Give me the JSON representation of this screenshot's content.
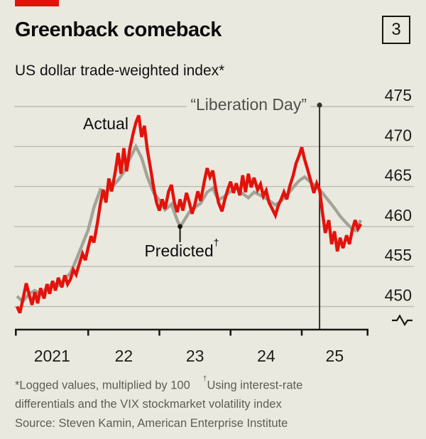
{
  "header": {
    "title": "Greenback comeback",
    "subtitle": "US dollar trade-weighted index*",
    "figure_number": "3",
    "accent_color": "#e3120b"
  },
  "chart_data": {
    "type": "line",
    "title": "US dollar trade-weighted index*",
    "xlabel": "",
    "ylabel": "",
    "ylim": [
      448,
      476
    ],
    "yticks": [
      "475",
      "470",
      "465",
      "460",
      "455",
      "450"
    ],
    "ytick_values": [
      475,
      470,
      465,
      460,
      455,
      450
    ],
    "xticks": [
      "2021",
      "22",
      "23",
      "24",
      "25"
    ],
    "xtick_years": [
      2021,
      2022,
      2023,
      2024,
      2025
    ],
    "grid": "horizontal",
    "axis_break": true,
    "legend_position": "inline-annotations",
    "colors": {
      "actual": "#e3120b",
      "predicted": "#a3a398",
      "gridline": "#bcbbb1",
      "axis": "#1a1a14",
      "marker_line": "#33332c",
      "tick_label": "#1d1d18"
    },
    "annotations": {
      "actual_label": "Actual",
      "predicted_label": "Predicted",
      "predicted_sup": "†",
      "predicted_point": [
        2023.29,
        460.0
      ],
      "liberation_label": "“Liberation Day”",
      "liberation_x": 2025.25
    },
    "series": [
      {
        "name": "Predicted",
        "color": "#a3a398",
        "points": [
          [
            2021.0,
            451.3
          ],
          [
            2021.08,
            450.6
          ],
          [
            2021.17,
            451.6
          ],
          [
            2021.25,
            452.0
          ],
          [
            2021.33,
            451.5
          ],
          [
            2021.42,
            452.4
          ],
          [
            2021.5,
            452.9
          ],
          [
            2021.58,
            452.6
          ],
          [
            2021.67,
            453.4
          ],
          [
            2021.75,
            454.2
          ],
          [
            2021.83,
            455.8
          ],
          [
            2021.92,
            457.8
          ],
          [
            2022.0,
            459.6
          ],
          [
            2022.08,
            462.4
          ],
          [
            2022.17,
            464.6
          ],
          [
            2022.25,
            464.3
          ],
          [
            2022.33,
            464.9
          ],
          [
            2022.42,
            465.8
          ],
          [
            2022.5,
            466.8
          ],
          [
            2022.58,
            468.4
          ],
          [
            2022.67,
            470.0
          ],
          [
            2022.75,
            468.6
          ],
          [
            2022.83,
            466.2
          ],
          [
            2022.92,
            464.2
          ],
          [
            2023.0,
            463.3
          ],
          [
            2023.08,
            462.1
          ],
          [
            2023.17,
            462.8
          ],
          [
            2023.25,
            460.8
          ],
          [
            2023.29,
            460.0
          ],
          [
            2023.33,
            460.5
          ],
          [
            2023.42,
            461.8
          ],
          [
            2023.5,
            462.4
          ],
          [
            2023.58,
            462.9
          ],
          [
            2023.67,
            464.3
          ],
          [
            2023.75,
            464.8
          ],
          [
            2023.83,
            463.3
          ],
          [
            2023.92,
            463.8
          ],
          [
            2024.0,
            464.4
          ],
          [
            2024.08,
            464.8
          ],
          [
            2024.17,
            464.1
          ],
          [
            2024.25,
            463.6
          ],
          [
            2024.33,
            464.3
          ],
          [
            2024.42,
            463.9
          ],
          [
            2024.5,
            463.5
          ],
          [
            2024.58,
            463.0
          ],
          [
            2024.63,
            462.7
          ],
          [
            2024.71,
            463.2
          ],
          [
            2024.79,
            463.9
          ],
          [
            2024.88,
            464.9
          ],
          [
            2024.96,
            465.7
          ],
          [
            2025.04,
            466.2
          ],
          [
            2025.13,
            465.5
          ],
          [
            2025.21,
            464.9
          ],
          [
            2025.29,
            464.2
          ],
          [
            2025.38,
            463.2
          ],
          [
            2025.46,
            462.3
          ],
          [
            2025.54,
            461.3
          ],
          [
            2025.63,
            460.4
          ],
          [
            2025.71,
            459.7
          ],
          [
            2025.75,
            459.5
          ],
          [
            2025.79,
            460.1
          ],
          [
            2025.83,
            460.8
          ]
        ]
      },
      {
        "name": "Actual",
        "color": "#e3120b",
        "points": [
          [
            2021.0,
            450.0
          ],
          [
            2021.04,
            449.2
          ],
          [
            2021.08,
            450.8
          ],
          [
            2021.13,
            452.9
          ],
          [
            2021.17,
            451.5
          ],
          [
            2021.21,
            450.2
          ],
          [
            2021.25,
            451.8
          ],
          [
            2021.29,
            450.4
          ],
          [
            2021.33,
            452.3
          ],
          [
            2021.38,
            451.0
          ],
          [
            2021.42,
            452.8
          ],
          [
            2021.46,
            451.6
          ],
          [
            2021.5,
            453.2
          ],
          [
            2021.54,
            452.0
          ],
          [
            2021.58,
            453.6
          ],
          [
            2021.63,
            452.4
          ],
          [
            2021.67,
            453.9
          ],
          [
            2021.71,
            452.8
          ],
          [
            2021.75,
            453.4
          ],
          [
            2021.79,
            454.6
          ],
          [
            2021.83,
            454.0
          ],
          [
            2021.88,
            455.5
          ],
          [
            2021.92,
            456.6
          ],
          [
            2021.96,
            455.8
          ],
          [
            2022.0,
            457.4
          ],
          [
            2022.04,
            458.8
          ],
          [
            2022.08,
            458.0
          ],
          [
            2022.13,
            460.5
          ],
          [
            2022.17,
            462.8
          ],
          [
            2022.21,
            464.6
          ],
          [
            2022.25,
            463.0
          ],
          [
            2022.29,
            466.0
          ],
          [
            2022.33,
            464.4
          ],
          [
            2022.38,
            466.8
          ],
          [
            2022.42,
            469.2
          ],
          [
            2022.46,
            466.6
          ],
          [
            2022.5,
            469.8
          ],
          [
            2022.54,
            466.9
          ],
          [
            2022.58,
            469.5
          ],
          [
            2022.63,
            471.6
          ],
          [
            2022.67,
            473.0
          ],
          [
            2022.71,
            473.9
          ],
          [
            2022.75,
            471.2
          ],
          [
            2022.79,
            472.6
          ],
          [
            2022.83,
            469.6
          ],
          [
            2022.88,
            467.0
          ],
          [
            2022.92,
            464.8
          ],
          [
            2022.96,
            463.0
          ],
          [
            2023.0,
            462.0
          ],
          [
            2023.04,
            463.4
          ],
          [
            2023.08,
            462.2
          ],
          [
            2023.13,
            464.4
          ],
          [
            2023.17,
            465.2
          ],
          [
            2023.21,
            463.0
          ],
          [
            2023.25,
            461.8
          ],
          [
            2023.29,
            463.4
          ],
          [
            2023.33,
            462.0
          ],
          [
            2023.38,
            464.2
          ],
          [
            2023.42,
            463.0
          ],
          [
            2023.46,
            461.6
          ],
          [
            2023.5,
            462.8
          ],
          [
            2023.54,
            464.4
          ],
          [
            2023.58,
            463.2
          ],
          [
            2023.63,
            465.6
          ],
          [
            2023.67,
            467.3
          ],
          [
            2023.71,
            466.2
          ],
          [
            2023.75,
            467.0
          ],
          [
            2023.79,
            464.8
          ],
          [
            2023.83,
            463.0
          ],
          [
            2023.88,
            461.9
          ],
          [
            2023.92,
            463.4
          ],
          [
            2023.96,
            464.6
          ],
          [
            2024.0,
            465.6
          ],
          [
            2024.04,
            464.2
          ],
          [
            2024.08,
            465.4
          ],
          [
            2024.13,
            463.9
          ],
          [
            2024.17,
            466.4
          ],
          [
            2024.21,
            464.3
          ],
          [
            2024.25,
            466.6
          ],
          [
            2024.29,
            464.9
          ],
          [
            2024.33,
            466.1
          ],
          [
            2024.38,
            464.6
          ],
          [
            2024.42,
            465.3
          ],
          [
            2024.46,
            463.8
          ],
          [
            2024.5,
            464.5
          ],
          [
            2024.54,
            463.0
          ],
          [
            2024.58,
            462.3
          ],
          [
            2024.63,
            461.4
          ],
          [
            2024.67,
            462.6
          ],
          [
            2024.71,
            463.4
          ],
          [
            2024.75,
            464.3
          ],
          [
            2024.79,
            463.4
          ],
          [
            2024.83,
            465.0
          ],
          [
            2024.88,
            466.4
          ],
          [
            2024.92,
            467.9
          ],
          [
            2024.96,
            468.8
          ],
          [
            2025.0,
            469.9
          ],
          [
            2025.04,
            468.4
          ],
          [
            2025.08,
            467.2
          ],
          [
            2025.13,
            465.6
          ],
          [
            2025.17,
            464.2
          ],
          [
            2025.21,
            465.4
          ],
          [
            2025.25,
            464.6
          ],
          [
            2025.29,
            461.8
          ],
          [
            2025.33,
            459.2
          ],
          [
            2025.38,
            460.8
          ],
          [
            2025.42,
            457.8
          ],
          [
            2025.46,
            459.4
          ],
          [
            2025.5,
            456.9
          ],
          [
            2025.54,
            458.6
          ],
          [
            2025.58,
            457.3
          ],
          [
            2025.63,
            458.9
          ],
          [
            2025.67,
            457.8
          ],
          [
            2025.71,
            459.6
          ],
          [
            2025.75,
            460.8
          ],
          [
            2025.79,
            459.7
          ],
          [
            2025.83,
            460.3
          ]
        ]
      }
    ]
  },
  "footnotes": {
    "line1a": "*Logged values, multiplied by 100",
    "line1_dagger": "†",
    "line1b": "Using interest-rate",
    "line2": "differentials and the VIX stockmarket volatility index",
    "line3": "Source: Steven Kamin, American Enterprise Institute"
  }
}
